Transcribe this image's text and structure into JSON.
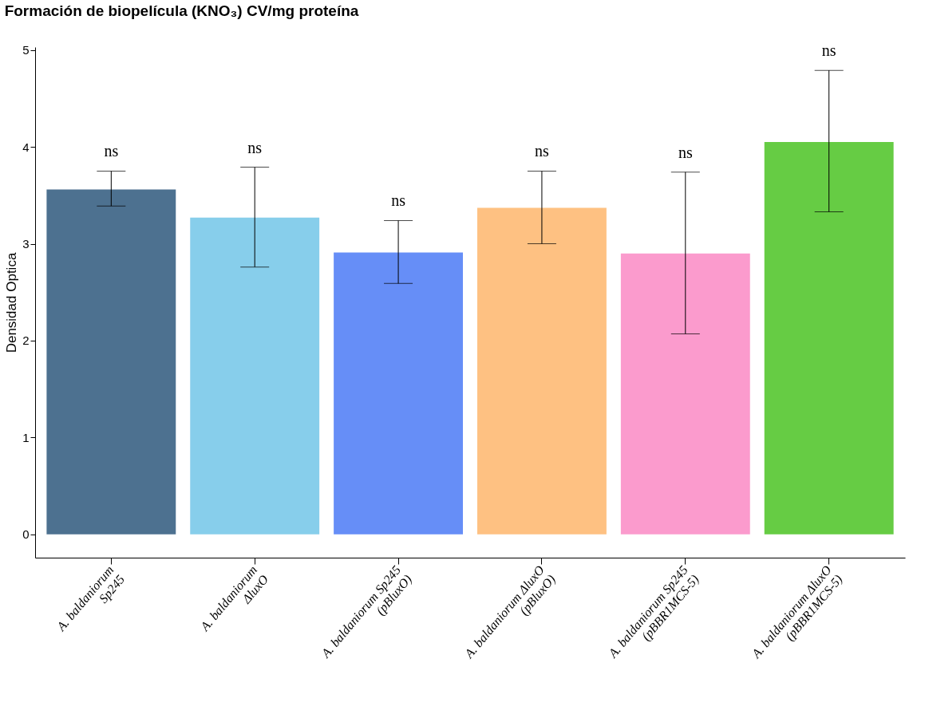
{
  "chart_data": {
    "type": "bar",
    "title": "Formación de biopelícula (KNO₃) CV/mg proteína",
    "ylabel": "Densidad Optica",
    "categories": [
      "A. baldaniorum\nSp245",
      "A. baldaniorum\nΔluxO",
      "A. baldaniorum Sp245\n(pBluxO)",
      "A. baldaniorum ΔluxO\n(pBluxO)",
      "A. baldaniorum Sp245\n(pBBR1MCS-5)",
      "A. baldaniorum ΔluxO\n(pBBR1MCS-5)"
    ],
    "values": [
      3.56,
      3.27,
      2.91,
      3.37,
      2.9,
      4.05
    ],
    "colors": [
      "#4d7190",
      "#87ceeb",
      "#668ef7",
      "#fec182",
      "#fb9bcd",
      "#66cc44"
    ],
    "errors": [
      [
        3.39,
        3.75
      ],
      [
        2.76,
        3.79
      ],
      [
        2.59,
        3.24
      ],
      [
        3.0,
        3.75
      ],
      [
        2.07,
        3.74
      ],
      [
        3.33,
        4.79
      ]
    ],
    "ylim": [
      -0.24,
      5.03
    ],
    "yticks": [
      0,
      1,
      2,
      3,
      4,
      5
    ],
    "grid": false,
    "legend": false,
    "annotations": [
      "ns",
      "ns",
      "ns",
      "ns",
      "ns",
      "ns"
    ]
  }
}
